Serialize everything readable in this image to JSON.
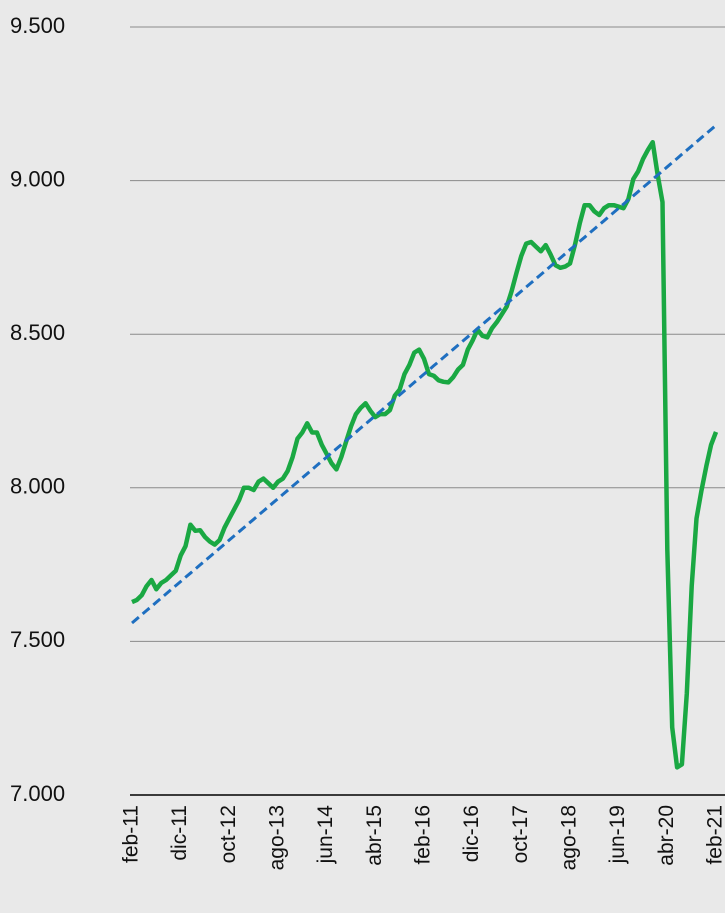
{
  "chart_data": {
    "type": "line",
    "categories": [
      "feb-11",
      null,
      null,
      null,
      null,
      null,
      null,
      null,
      null,
      null,
      "dic-11",
      null,
      null,
      null,
      null,
      null,
      null,
      null,
      null,
      null,
      "oct-12",
      null,
      null,
      null,
      null,
      null,
      null,
      null,
      null,
      null,
      "ago-13",
      null,
      null,
      null,
      null,
      null,
      null,
      null,
      null,
      null,
      "jun-14",
      null,
      null,
      null,
      null,
      null,
      null,
      null,
      null,
      null,
      "abr-15",
      null,
      null,
      null,
      null,
      null,
      null,
      null,
      null,
      null,
      "feb-16",
      null,
      null,
      null,
      null,
      null,
      null,
      null,
      null,
      null,
      "dic-16",
      null,
      null,
      null,
      null,
      null,
      null,
      null,
      null,
      null,
      "oct-17",
      null,
      null,
      null,
      null,
      null,
      null,
      null,
      null,
      null,
      "ago-18",
      null,
      null,
      null,
      null,
      null,
      null,
      null,
      null,
      null,
      "jun-19",
      null,
      null,
      null,
      null,
      null,
      null,
      null,
      null,
      null,
      "abr-20",
      null,
      null,
      null,
      null,
      null,
      null,
      null,
      null,
      null,
      "feb-21"
    ],
    "series": [
      {
        "color": "#1aa843",
        "values": [
          7628,
          7635,
          7650,
          7680,
          7700,
          7670,
          7690,
          7700,
          7715,
          7730,
          7780,
          7810,
          7880,
          7860,
          7862,
          7840,
          7825,
          7815,
          7830,
          7870,
          7900,
          7930,
          7960,
          8000,
          8000,
          7993,
          8020,
          8030,
          8015,
          8000,
          8020,
          8030,
          8055,
          8100,
          8160,
          8180,
          8210,
          8180,
          8180,
          8140,
          8110,
          8080,
          8060,
          8100,
          8150,
          8200,
          8240,
          8260,
          8275,
          8250,
          8230,
          8240,
          8240,
          8253,
          8300,
          8320,
          8370,
          8400,
          8440,
          8450,
          8420,
          8370,
          8365,
          8350,
          8345,
          8343,
          8360,
          8385,
          8400,
          8450,
          8480,
          8515,
          8495,
          8490,
          8520,
          8540,
          8565,
          8590,
          8640,
          8700,
          8755,
          8795,
          8800,
          8785,
          8770,
          8790,
          8760,
          8725,
          8716,
          8720,
          8730,
          8790,
          8860,
          8920,
          8920,
          8900,
          8888,
          8910,
          8920,
          8920,
          8915,
          8910,
          8940,
          9005,
          9030,
          9070,
          9100,
          9125,
          9020,
          8930,
          7800,
          7220,
          7090,
          7100,
          7330,
          7680,
          7900,
          7990,
          8070,
          8140,
          8182
        ]
      },
      {
        "color": "#1f6fc0",
        "dashed": true,
        "values": [
          7560,
          7573.5,
          7587,
          7600.5,
          7614,
          7627.5,
          7641,
          7654.5,
          7668,
          7681.5,
          7695,
          7708.5,
          7722,
          7735.5,
          7749,
          7762.5,
          7776,
          7789.5,
          7803,
          7816.5,
          7830,
          7843.5,
          7857,
          7870.5,
          7884,
          7897.5,
          7911,
          7924.5,
          7938,
          7951.5,
          7965,
          7978.5,
          7992,
          8005.5,
          8019,
          8032.5,
          8046,
          8059.5,
          8073,
          8086.5,
          8100,
          8113.5,
          8127,
          8140.5,
          8154,
          8167.5,
          8181,
          8194.5,
          8208,
          8221.5,
          8235,
          8248.5,
          8262,
          8275.5,
          8289,
          8302.5,
          8316,
          8329.5,
          8343,
          8356.5,
          8370,
          8383.5,
          8397,
          8410.5,
          8424,
          8437.5,
          8451,
          8464.5,
          8478,
          8491.5,
          8505,
          8518.5,
          8532,
          8545.5,
          8559,
          8572.5,
          8586,
          8599.5,
          8613,
          8626.5,
          8640,
          8653.5,
          8667,
          8680.5,
          8694,
          8707.5,
          8721,
          8734.5,
          8748,
          8761.5,
          8775,
          8788.5,
          8802,
          8815.5,
          8829,
          8842.5,
          8856,
          8869.5,
          8883,
          8896.5,
          8910,
          8923.5,
          8937,
          8950.5,
          8964,
          8977.5,
          8991,
          9004.5,
          9018,
          9031.5,
          9045,
          9058.5,
          9072,
          9085.5,
          9099,
          9112.5,
          9126,
          9139.5,
          9153,
          9166.5,
          9180
        ]
      }
    ],
    "ylim": [
      7000,
      9500
    ],
    "yticks": [
      {
        "value": 7000,
        "label": "7.000"
      },
      {
        "value": 7500,
        "label": "7.500"
      },
      {
        "value": 8000,
        "label": "8.000"
      },
      {
        "value": 8500,
        "label": "8.500"
      },
      {
        "value": 9000,
        "label": "9.000"
      },
      {
        "value": 9500,
        "label": "9.500"
      }
    ],
    "grid": true
  }
}
